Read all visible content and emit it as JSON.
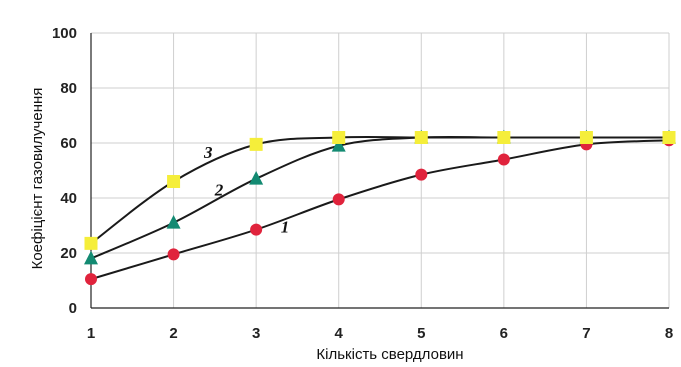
{
  "chart_data": {
    "type": "line",
    "xlabel": "Кількість свердловин",
    "ylabel": "Коефіцієнт газовилучення",
    "xlim": [
      1,
      8
    ],
    "ylim": [
      0,
      100
    ],
    "x_ticks": [
      "1",
      "2",
      "3",
      "4",
      "5",
      "6",
      "7",
      "8"
    ],
    "y_ticks": [
      "0",
      "20",
      "40",
      "60",
      "80",
      "100"
    ],
    "grid": true,
    "x": [
      1,
      2,
      3,
      4,
      5,
      6,
      7,
      8
    ],
    "series": [
      {
        "label": "1",
        "marker": "circle",
        "color": "#e0233c",
        "values": [
          10.5,
          19.5,
          28.5,
          39.5,
          48.5,
          54,
          59.5,
          61
        ]
      },
      {
        "label": "2",
        "marker": "triangle",
        "color": "#138a72",
        "values": [
          18,
          31,
          47,
          59,
          62,
          62,
          62,
          62
        ]
      },
      {
        "label": "3",
        "marker": "square",
        "color": "#f5ee3a",
        "values": [
          23.5,
          46,
          59.5,
          62,
          62,
          62,
          62,
          62
        ]
      }
    ]
  }
}
